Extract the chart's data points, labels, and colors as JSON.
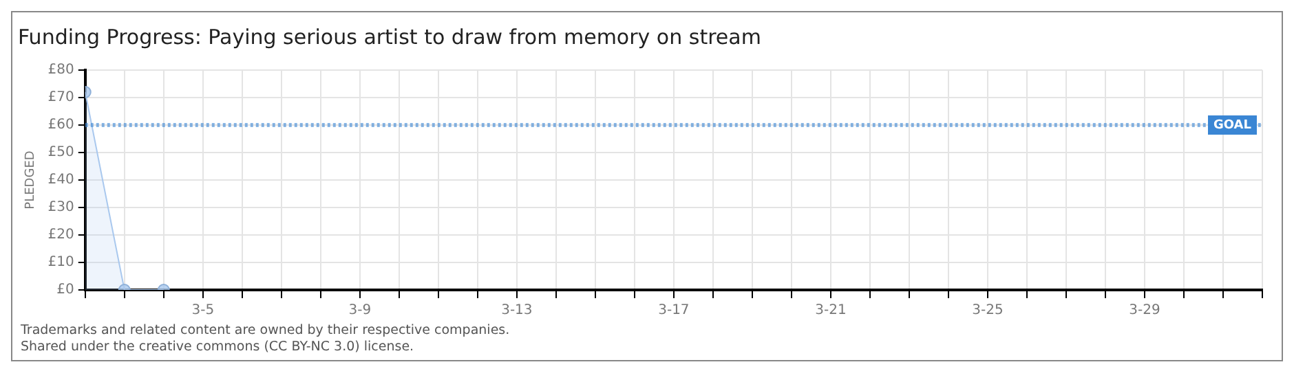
{
  "chart_data": {
    "type": "area",
    "title": "Funding Progress: Paying serious artist to draw from memory on stream",
    "ylabel": "PLEDGED",
    "x": [
      "--03-02",
      "--03-03",
      "--03-04"
    ],
    "series": [
      {
        "color": "#a9c8ee",
        "values": [
          72,
          0,
          0
        ]
      }
    ],
    "xlim": [
      "--03-02",
      "--04-01"
    ],
    "xticks": [
      {
        "value": "--03-02",
        "label": null
      },
      {
        "value": "--03-03",
        "label": null
      },
      {
        "value": "--03-04",
        "label": null
      },
      {
        "value": "--03-05",
        "label": "3-5"
      },
      {
        "value": "--03-06",
        "label": null
      },
      {
        "value": "--03-07",
        "label": null
      },
      {
        "value": "--03-08",
        "label": null
      },
      {
        "value": "--03-09",
        "label": "3-9"
      },
      {
        "value": "--03-10",
        "label": null
      },
      {
        "value": "--03-11",
        "label": null
      },
      {
        "value": "--03-12",
        "label": null
      },
      {
        "value": "--03-13",
        "label": "3-13"
      },
      {
        "value": "--03-14",
        "label": null
      },
      {
        "value": "--03-15",
        "label": null
      },
      {
        "value": "--03-16",
        "label": null
      },
      {
        "value": "--03-17",
        "label": "3-17"
      },
      {
        "value": "--03-18",
        "label": null
      },
      {
        "value": "--03-19",
        "label": null
      },
      {
        "value": "--03-20",
        "label": null
      },
      {
        "value": "--03-21",
        "label": "3-21"
      },
      {
        "value": "--03-22",
        "label": null
      },
      {
        "value": "--03-23",
        "label": null
      },
      {
        "value": "--03-24",
        "label": null
      },
      {
        "value": "--03-25",
        "label": "3-25"
      },
      {
        "value": "--03-26",
        "label": null
      },
      {
        "value": "--03-27",
        "label": null
      },
      {
        "value": "--03-28",
        "label": null
      },
      {
        "value": "--03-29",
        "label": "3-29"
      },
      {
        "value": "--03-30",
        "label": null
      },
      {
        "value": "--03-31",
        "label": null
      },
      {
        "value": "--04-01",
        "label": null
      }
    ],
    "ylim": [
      0,
      80
    ],
    "yticks": [
      {
        "value": 0,
        "label": "£0"
      },
      {
        "value": 10,
        "label": "£10"
      },
      {
        "value": 20,
        "label": "£20"
      },
      {
        "value": 30,
        "label": "£30"
      },
      {
        "value": 40,
        "label": "£40"
      },
      {
        "value": 50,
        "label": "£50"
      },
      {
        "value": 60,
        "label": "£60"
      },
      {
        "value": 70,
        "label": "£70"
      },
      {
        "value": 80,
        "label": "£80"
      }
    ],
    "grid": true,
    "marker": "circle",
    "legend": false,
    "ref_lines": [
      {
        "axis": "y",
        "value": 60,
        "label": "GOAL",
        "color": "#3a86d4",
        "line_style": "dotted"
      }
    ],
    "annotations": [
      "Trademarks and related content are owned by their respective companies.",
      "Shared under the creative commons (CC BY-NC 3.0) license."
    ]
  }
}
